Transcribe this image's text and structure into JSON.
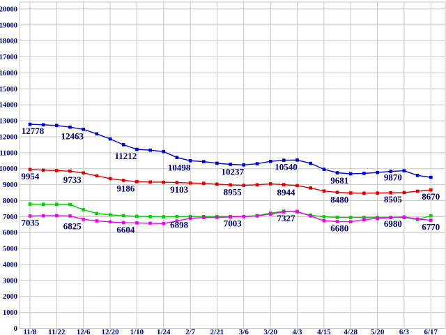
{
  "chart_data": {
    "type": "line",
    "title": "",
    "xlabel": "",
    "ylabel": "",
    "grid": true,
    "legend_position": "none",
    "background_color": "#ffffff",
    "grid_color": "#c6c6c6",
    "text_color": "#000066",
    "y_axis": {
      "min": 0,
      "max": 20000,
      "step": 1000
    },
    "y_tick_labels": [
      "20000",
      "19000",
      "18000",
      "17000",
      "16000",
      "15000",
      "14000",
      "13000",
      "12000",
      "11000",
      "10000",
      "9000",
      "8000",
      "7000",
      "6000",
      "5000",
      "4000",
      "3000",
      "2000",
      "1000",
      "0"
    ],
    "x_tick_labels": [
      "11/8",
      "11/22",
      "12/6",
      "12/20",
      "1/10",
      "1/24",
      "2/7",
      "2/21",
      "3/6",
      "3/20",
      "4/3",
      "4/15",
      "4/28",
      "5/20",
      "6/3",
      "6/17"
    ],
    "points_per_tick_interval": 2,
    "series": [
      {
        "name": "green-series",
        "color": "#00cc00",
        "values": [
          7780,
          7770,
          7765,
          7760,
          7430,
          7200,
          7110,
          7060,
          7020,
          7000,
          6990,
          7000,
          7010,
          7005,
          7000,
          7005,
          7010,
          7060,
          7220,
          7340,
          7280,
          7090,
          6990,
          6950,
          6945,
          6950,
          6955,
          6950,
          6940,
          6820,
          7050
        ],
        "labels": []
      },
      {
        "name": "magenta-series",
        "color": "#ee00ee",
        "values": [
          7035,
          7055,
          7060,
          7040,
          6825,
          6730,
          6670,
          6625,
          6604,
          6580,
          6565,
          6720,
          6898,
          6940,
          6950,
          6975,
          7003,
          7040,
          7160,
          7300,
          7327,
          7040,
          6740,
          6690,
          6680,
          6810,
          6890,
          6940,
          6980,
          6850,
          6770
        ],
        "labels": [
          {
            "index": 0,
            "text": "7035"
          },
          {
            "index": 4,
            "text": "6825"
          },
          {
            "index": 8,
            "text": "6604"
          },
          {
            "index": 12,
            "text": "6898"
          },
          {
            "index": 16,
            "text": "7003"
          },
          {
            "index": 20,
            "text": "7327"
          },
          {
            "index": 24,
            "text": "6680"
          },
          {
            "index": 28,
            "text": "6980"
          },
          {
            "index": 30,
            "text": "6770"
          }
        ]
      },
      {
        "name": "red-series",
        "color": "#dd0000",
        "values": [
          9954,
          9910,
          9880,
          9845,
          9733,
          9550,
          9380,
          9270,
          9186,
          9165,
          9150,
          9130,
          9103,
          9080,
          9030,
          8985,
          8955,
          8990,
          9050,
          9000,
          8944,
          8790,
          8600,
          8520,
          8480,
          8465,
          8475,
          8490,
          8505,
          8590,
          8670
        ],
        "labels": [
          {
            "index": 0,
            "text": "9954"
          },
          {
            "index": 4,
            "text": "9733"
          },
          {
            "index": 8,
            "text": "9186"
          },
          {
            "index": 12,
            "text": "9103"
          },
          {
            "index": 16,
            "text": "8955"
          },
          {
            "index": 20,
            "text": "8944"
          },
          {
            "index": 24,
            "text": "8480"
          },
          {
            "index": 28,
            "text": "8505"
          },
          {
            "index": 30,
            "text": "8670"
          }
        ]
      },
      {
        "name": "blue-series",
        "color": "#0000cc",
        "values": [
          12778,
          12750,
          12705,
          12600,
          12463,
          12180,
          11860,
          11500,
          11212,
          11160,
          11070,
          10700,
          10498,
          10440,
          10340,
          10270,
          10237,
          10310,
          10460,
          10530,
          10540,
          10330,
          9960,
          9740,
          9681,
          9705,
          9760,
          9830,
          9870,
          9580,
          9460
        ],
        "labels": [
          {
            "index": 0,
            "text": "12778"
          },
          {
            "index": 4,
            "text": "12463"
          },
          {
            "index": 8,
            "text": "11212"
          },
          {
            "index": 12,
            "text": "10498"
          },
          {
            "index": 16,
            "text": "10237"
          },
          {
            "index": 20,
            "text": "10540"
          },
          {
            "index": 24,
            "text": "9681"
          },
          {
            "index": 28,
            "text": "9870"
          }
        ]
      }
    ]
  }
}
